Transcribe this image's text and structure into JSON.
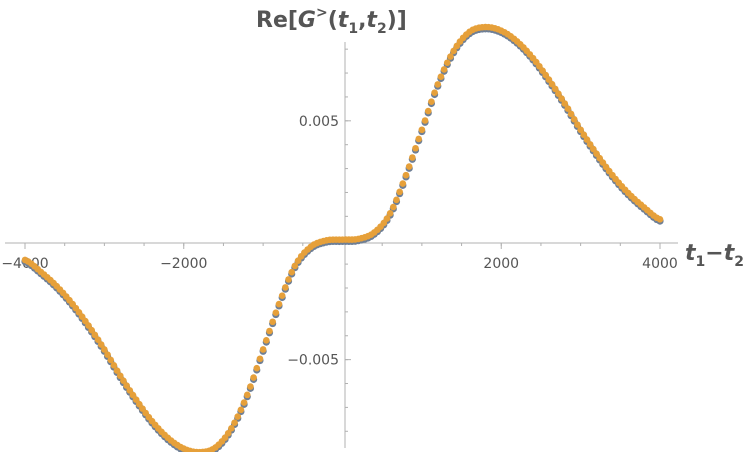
{
  "chart_data": {
    "type": "scatter",
    "title": "",
    "ylabel_parts": {
      "base": "Re[",
      "G": "G",
      "sup": ">",
      "open": "(",
      "t1": "t",
      "sub1": "1",
      "comma": ",",
      "t2": "t",
      "sub2": "2",
      "close": ")]"
    },
    "xlabel_parts": {
      "t1": "t",
      "sub1": "1",
      "minus": "−",
      "t2": "t",
      "sub2": "2"
    },
    "xlim": [
      -4000,
      4000
    ],
    "ylim": [
      -0.0087,
      0.0083
    ],
    "x_ticks": [
      -4000,
      -2000,
      2000,
      4000
    ],
    "x_tick_labels": [
      "−4000",
      "−2000",
      "2000",
      "4000"
    ],
    "x_minor_step": 500,
    "y_ticks": [
      0.005,
      -0.005
    ],
    "y_tick_labels": [
      "0.005",
      "−0.005"
    ],
    "y_minor_step": 0.001,
    "grid": false,
    "series": [
      {
        "color": "#6e7f96",
        "x": [
          -4000,
          -3800,
          -3600,
          -3400,
          -3200,
          -3000,
          -2800,
          -2600,
          -2400,
          -2200,
          -2000,
          -1800,
          -1600,
          -1400,
          -1200,
          -1000,
          -800,
          -600,
          -400,
          -200,
          0,
          200,
          400,
          600,
          800,
          1000,
          1200,
          1400,
          1600,
          1800,
          2000,
          2200,
          2400,
          2600,
          2800,
          3000,
          3200,
          3400,
          3600,
          3800,
          4000
        ],
        "y": [
          -0.00085,
          -0.00135,
          -0.00195,
          -0.0027,
          -0.0036,
          -0.0046,
          -0.0057,
          -0.0067,
          -0.0076,
          -0.0083,
          -0.00875,
          -0.0089,
          -0.0087,
          -0.0079,
          -0.0065,
          -0.0046,
          -0.0027,
          -0.0011,
          -0.0003,
          -3e-05,
          0.0,
          3e-05,
          0.0003,
          0.0011,
          0.0027,
          0.0046,
          0.0065,
          0.0079,
          0.0087,
          0.0089,
          0.00875,
          0.0083,
          0.0076,
          0.0067,
          0.0057,
          0.0046,
          0.0036,
          0.0027,
          0.00195,
          0.00135,
          0.00085
        ]
      },
      {
        "color": "#e6a03a",
        "x": [
          -4000,
          -3800,
          -3600,
          -3400,
          -3200,
          -3000,
          -2800,
          -2600,
          -2400,
          -2200,
          -2000,
          -1800,
          -1600,
          -1400,
          -1200,
          -1000,
          -800,
          -600,
          -400,
          -200,
          0,
          200,
          400,
          600,
          800,
          1000,
          1200,
          1400,
          1600,
          1800,
          2000,
          2200,
          2400,
          2600,
          2800,
          3000,
          3200,
          3400,
          3600,
          3800,
          4000
        ],
        "y": [
          -0.00085,
          -0.00135,
          -0.00195,
          -0.0027,
          -0.0036,
          -0.0046,
          -0.0057,
          -0.0067,
          -0.0076,
          -0.0083,
          -0.00875,
          -0.0089,
          -0.0087,
          -0.0079,
          -0.0065,
          -0.0046,
          -0.0027,
          -0.0011,
          -0.0003,
          -3e-05,
          0.0,
          3e-05,
          0.0003,
          0.0011,
          0.0027,
          0.0046,
          0.0065,
          0.0079,
          0.0087,
          0.0089,
          0.00875,
          0.0083,
          0.0076,
          0.0067,
          0.0057,
          0.0046,
          0.0036,
          0.0027,
          0.00195,
          0.00135,
          0.00085
        ]
      }
    ]
  }
}
